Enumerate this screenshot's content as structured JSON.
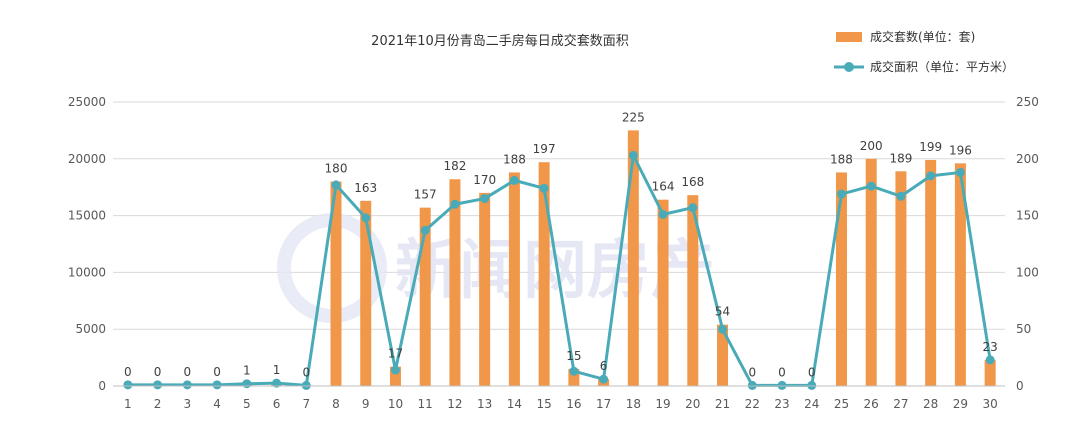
{
  "chart_data": {
    "type": "bar",
    "title": "2021年10月份青岛二手房每日成交套数面积",
    "categories": [
      "1",
      "2",
      "3",
      "4",
      "5",
      "6",
      "7",
      "8",
      "9",
      "10",
      "11",
      "12",
      "13",
      "14",
      "15",
      "16",
      "17",
      "18",
      "19",
      "20",
      "21",
      "22",
      "23",
      "24",
      "25",
      "26",
      "27",
      "28",
      "29",
      "30"
    ],
    "series": [
      {
        "name": "成交套数(单位：套)",
        "type": "bar",
        "axis": "right",
        "color": "#f0974a",
        "values": [
          0,
          0,
          0,
          0,
          1,
          1,
          0,
          180,
          163,
          17,
          157,
          182,
          170,
          188,
          197,
          15,
          6,
          225,
          164,
          168,
          54,
          0,
          0,
          0,
          188,
          200,
          189,
          199,
          196,
          23
        ]
      },
      {
        "name": "成交面积（单位：平方米）",
        "type": "line",
        "axis": "left",
        "color": "#4aabb8",
        "values": [
          100,
          100,
          100,
          100,
          200,
          250,
          50,
          17700,
          14800,
          1400,
          13700,
          16000,
          16500,
          18100,
          17400,
          1300,
          600,
          20300,
          15100,
          15700,
          5000,
          50,
          50,
          50,
          16900,
          17600,
          16700,
          18500,
          18800,
          2300
        ]
      }
    ],
    "data_labels": [
      "0",
      "0",
      "0",
      "0",
      "1",
      "1",
      "0",
      "180",
      "163",
      "17",
      "157",
      "182",
      "170",
      "188",
      "197",
      "15",
      "6",
      "225",
      "164",
      "168",
      "54",
      "0",
      "0",
      "0",
      "188",
      "200",
      "189",
      "199",
      "196",
      "23"
    ],
    "y_left": {
      "ticks": [
        "0",
        "5000",
        "10000",
        "15000",
        "20000",
        "25000"
      ],
      "lim": [
        0,
        25000
      ]
    },
    "y_right": {
      "ticks": [
        "0",
        "50",
        "100",
        "150",
        "200",
        "250"
      ],
      "lim": [
        0,
        250
      ]
    },
    "grid": true,
    "legend_position": "top-right",
    "watermark": "新闻网房产"
  }
}
